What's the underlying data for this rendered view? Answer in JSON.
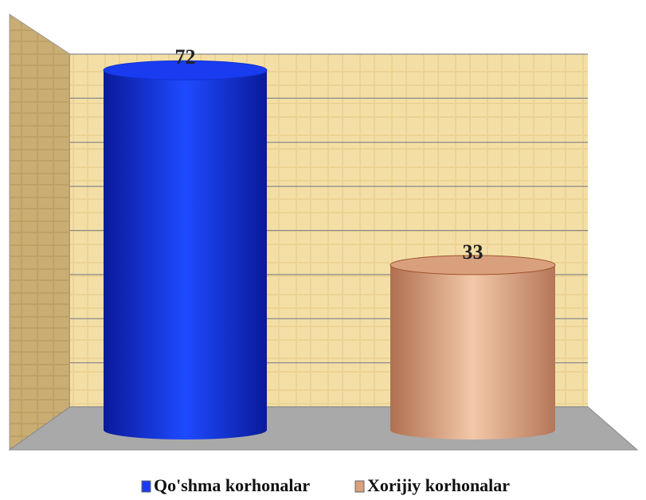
{
  "chart_data": {
    "type": "bar",
    "categories": [
      "Qo'shma korhonalar",
      "Xorijiy korhonalar"
    ],
    "values": [
      72,
      33
    ],
    "colors": [
      "#1a3cf0",
      "#d9a07e"
    ],
    "ylim": [
      0,
      80
    ],
    "yticks": [
      0,
      10,
      20,
      30,
      40,
      50,
      60,
      70,
      80
    ],
    "grid": true
  }
}
